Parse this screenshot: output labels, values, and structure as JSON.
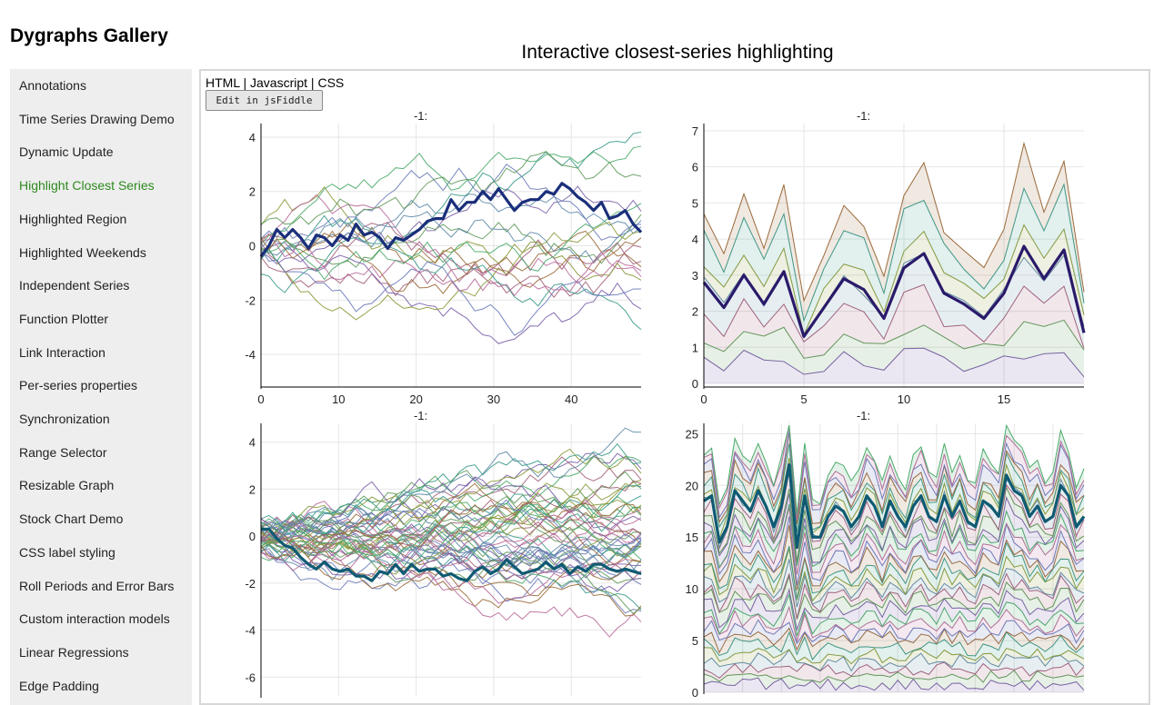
{
  "site_title": "Dygraphs Gallery",
  "page_title": "Interactive closest-series highlighting",
  "sidebar": {
    "items": [
      {
        "label": "Annotations"
      },
      {
        "label": "Time Series Drawing Demo"
      },
      {
        "label": "Dynamic Update"
      },
      {
        "label": "Highlight Closest Series",
        "active": true
      },
      {
        "label": "Highlighted Region"
      },
      {
        "label": "Highlighted Weekends"
      },
      {
        "label": "Independent Series"
      },
      {
        "label": "Function Plotter"
      },
      {
        "label": "Link Interaction"
      },
      {
        "label": "Per-series properties"
      },
      {
        "label": "Synchronization"
      },
      {
        "label": "Range Selector"
      },
      {
        "label": "Resizable Graph"
      },
      {
        "label": "Stock Chart Demo"
      },
      {
        "label": "CSS label styling"
      },
      {
        "label": "Roll Periods and Error Bars"
      },
      {
        "label": "Custom interaction models"
      },
      {
        "label": "Linear Regressions"
      },
      {
        "label": "Edge Padding"
      }
    ]
  },
  "source_links": {
    "html": "HTML",
    "js": "Javascript",
    "css": "CSS",
    "sep": " | "
  },
  "fiddle_button": "Edit in jsFiddle",
  "colors": {
    "active_nav": "#2d8a1e",
    "highlight_a": "#1a2f7a",
    "highlight_b": "#2a1a6a",
    "highlight_c": "#0f5a73"
  },
  "chart_data": [
    {
      "type": "line",
      "title": "-1:",
      "xlim": [
        0,
        49
      ],
      "ylim": [
        -5.2,
        4.5
      ],
      "x_ticks": [
        0,
        10,
        20,
        30,
        40
      ],
      "y_ticks": [
        4,
        2,
        0,
        -2,
        -4
      ],
      "series_count": 20,
      "highlighted_series_y": [
        -0.4,
        0,
        0.6,
        0.3,
        0.6,
        0.3,
        -0.1,
        0.4,
        0.3,
        0,
        0.4,
        0.2,
        0.8,
        0.4,
        0.5,
        0.3,
        -0.1,
        0.3,
        0.2,
        0.4,
        0.6,
        0.9,
        1,
        1,
        1.7,
        1.3,
        1.6,
        1.6,
        2,
        1.7,
        2.1,
        1.7,
        1.3,
        1.6,
        1.7,
        1.7,
        2,
        1.9,
        2.3,
        2.1,
        1.8,
        1.6,
        1.3,
        1.6,
        1,
        1.1,
        1.3,
        0.8,
        0.5
      ],
      "grid": true
    },
    {
      "type": "area",
      "title": "-1:",
      "xlim": [
        0,
        19
      ],
      "ylim": [
        -0.1,
        7.2
      ],
      "x_ticks": [
        0,
        5,
        10,
        15
      ],
      "y_ticks": [
        7,
        6,
        5,
        4,
        3,
        2,
        1,
        0
      ],
      "stacked": true,
      "highlighted_series_y": [
        2.8,
        2.1,
        3,
        2.2,
        3.1,
        1.3,
        2.1,
        2.9,
        2.6,
        1.8,
        3.2,
        3.6,
        2.5,
        2.2,
        1.8,
        2.5,
        3.8,
        2.9,
        3.7,
        1.4
      ],
      "grid": true
    },
    {
      "type": "line",
      "title": "-1:",
      "xlim": [
        0,
        49
      ],
      "ylim": [
        -6.8,
        4.8
      ],
      "x_ticks": [],
      "y_ticks": [
        4,
        2,
        0,
        -2,
        -4,
        -6
      ],
      "series_count": 50,
      "highlighted_series_y": [
        0.3,
        0.3,
        -0.1,
        -0.4,
        -0.5,
        -0.9,
        -1.2,
        -1.4,
        -1.1,
        -1.4,
        -1.5,
        -1.4,
        -1.7,
        -1.7,
        -1.9,
        -1.5,
        -1.6,
        -1.2,
        -1.6,
        -1.2,
        -1.5,
        -1.4,
        -1.4,
        -1.7,
        -1.6,
        -1.8,
        -1.9,
        -1.5,
        -1.3,
        -1.6,
        -1.4,
        -1,
        -1.3,
        -1.6,
        -1.5,
        -1.4,
        -1.1,
        -1.4,
        -1.2,
        -1.6,
        -1.3,
        -1.5,
        -1.2,
        -1.2,
        -1.4,
        -1.5,
        -1.4,
        -1.5,
        -1.6
      ],
      "grid": true
    },
    {
      "type": "area",
      "title": "-1:",
      "xlim": [
        0,
        49
      ],
      "ylim": [
        0,
        26
      ],
      "x_ticks": [],
      "y_ticks": [
        25,
        20,
        15,
        10,
        5,
        0
      ],
      "stacked": true,
      "highlighted_series_y": [
        18.5,
        19,
        14.5,
        16,
        19.5,
        18.5,
        17.5,
        19.5,
        18,
        16,
        18,
        22,
        14,
        19,
        15,
        15,
        17,
        18,
        17.5,
        16,
        17,
        19,
        18,
        16,
        18.5,
        17,
        16,
        18,
        19,
        17,
        16.5,
        19,
        17,
        18.5,
        16.5,
        16,
        18.5,
        18,
        17,
        21,
        19.5,
        19,
        17,
        18,
        16.5,
        17,
        20,
        19,
        16,
        17
      ],
      "grid": true
    }
  ]
}
